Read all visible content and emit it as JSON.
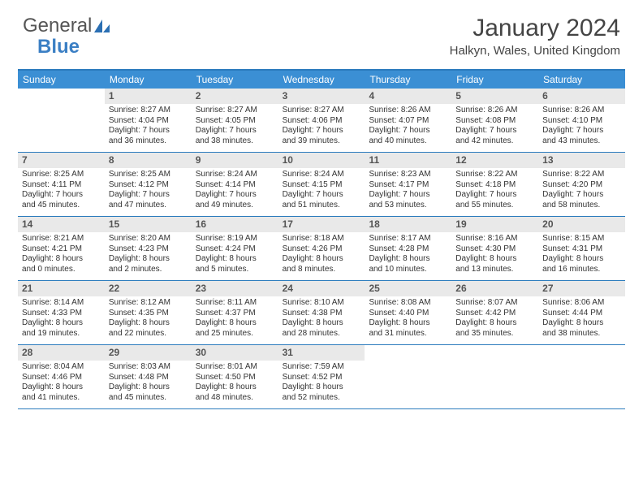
{
  "logo": {
    "text1": "General",
    "text2": "Blue"
  },
  "title": "January 2024",
  "location": "Halkyn, Wales, United Kingdom",
  "colors": {
    "header_bg": "#3b8fd4",
    "header_text": "#ffffff",
    "rule": "#2b7bbd",
    "daynum_bg": "#e9e9e9",
    "body_text": "#333333"
  },
  "day_names": [
    "Sunday",
    "Monday",
    "Tuesday",
    "Wednesday",
    "Thursday",
    "Friday",
    "Saturday"
  ],
  "weeks": [
    [
      null,
      {
        "n": "1",
        "sr": "Sunrise: 8:27 AM",
        "ss": "Sunset: 4:04 PM",
        "d1": "Daylight: 7 hours",
        "d2": "and 36 minutes."
      },
      {
        "n": "2",
        "sr": "Sunrise: 8:27 AM",
        "ss": "Sunset: 4:05 PM",
        "d1": "Daylight: 7 hours",
        "d2": "and 38 minutes."
      },
      {
        "n": "3",
        "sr": "Sunrise: 8:27 AM",
        "ss": "Sunset: 4:06 PM",
        "d1": "Daylight: 7 hours",
        "d2": "and 39 minutes."
      },
      {
        "n": "4",
        "sr": "Sunrise: 8:26 AM",
        "ss": "Sunset: 4:07 PM",
        "d1": "Daylight: 7 hours",
        "d2": "and 40 minutes."
      },
      {
        "n": "5",
        "sr": "Sunrise: 8:26 AM",
        "ss": "Sunset: 4:08 PM",
        "d1": "Daylight: 7 hours",
        "d2": "and 42 minutes."
      },
      {
        "n": "6",
        "sr": "Sunrise: 8:26 AM",
        "ss": "Sunset: 4:10 PM",
        "d1": "Daylight: 7 hours",
        "d2": "and 43 minutes."
      }
    ],
    [
      {
        "n": "7",
        "sr": "Sunrise: 8:25 AM",
        "ss": "Sunset: 4:11 PM",
        "d1": "Daylight: 7 hours",
        "d2": "and 45 minutes."
      },
      {
        "n": "8",
        "sr": "Sunrise: 8:25 AM",
        "ss": "Sunset: 4:12 PM",
        "d1": "Daylight: 7 hours",
        "d2": "and 47 minutes."
      },
      {
        "n": "9",
        "sr": "Sunrise: 8:24 AM",
        "ss": "Sunset: 4:14 PM",
        "d1": "Daylight: 7 hours",
        "d2": "and 49 minutes."
      },
      {
        "n": "10",
        "sr": "Sunrise: 8:24 AM",
        "ss": "Sunset: 4:15 PM",
        "d1": "Daylight: 7 hours",
        "d2": "and 51 minutes."
      },
      {
        "n": "11",
        "sr": "Sunrise: 8:23 AM",
        "ss": "Sunset: 4:17 PM",
        "d1": "Daylight: 7 hours",
        "d2": "and 53 minutes."
      },
      {
        "n": "12",
        "sr": "Sunrise: 8:22 AM",
        "ss": "Sunset: 4:18 PM",
        "d1": "Daylight: 7 hours",
        "d2": "and 55 minutes."
      },
      {
        "n": "13",
        "sr": "Sunrise: 8:22 AM",
        "ss": "Sunset: 4:20 PM",
        "d1": "Daylight: 7 hours",
        "d2": "and 58 minutes."
      }
    ],
    [
      {
        "n": "14",
        "sr": "Sunrise: 8:21 AM",
        "ss": "Sunset: 4:21 PM",
        "d1": "Daylight: 8 hours",
        "d2": "and 0 minutes."
      },
      {
        "n": "15",
        "sr": "Sunrise: 8:20 AM",
        "ss": "Sunset: 4:23 PM",
        "d1": "Daylight: 8 hours",
        "d2": "and 2 minutes."
      },
      {
        "n": "16",
        "sr": "Sunrise: 8:19 AM",
        "ss": "Sunset: 4:24 PM",
        "d1": "Daylight: 8 hours",
        "d2": "and 5 minutes."
      },
      {
        "n": "17",
        "sr": "Sunrise: 8:18 AM",
        "ss": "Sunset: 4:26 PM",
        "d1": "Daylight: 8 hours",
        "d2": "and 8 minutes."
      },
      {
        "n": "18",
        "sr": "Sunrise: 8:17 AM",
        "ss": "Sunset: 4:28 PM",
        "d1": "Daylight: 8 hours",
        "d2": "and 10 minutes."
      },
      {
        "n": "19",
        "sr": "Sunrise: 8:16 AM",
        "ss": "Sunset: 4:30 PM",
        "d1": "Daylight: 8 hours",
        "d2": "and 13 minutes."
      },
      {
        "n": "20",
        "sr": "Sunrise: 8:15 AM",
        "ss": "Sunset: 4:31 PM",
        "d1": "Daylight: 8 hours",
        "d2": "and 16 minutes."
      }
    ],
    [
      {
        "n": "21",
        "sr": "Sunrise: 8:14 AM",
        "ss": "Sunset: 4:33 PM",
        "d1": "Daylight: 8 hours",
        "d2": "and 19 minutes."
      },
      {
        "n": "22",
        "sr": "Sunrise: 8:12 AM",
        "ss": "Sunset: 4:35 PM",
        "d1": "Daylight: 8 hours",
        "d2": "and 22 minutes."
      },
      {
        "n": "23",
        "sr": "Sunrise: 8:11 AM",
        "ss": "Sunset: 4:37 PM",
        "d1": "Daylight: 8 hours",
        "d2": "and 25 minutes."
      },
      {
        "n": "24",
        "sr": "Sunrise: 8:10 AM",
        "ss": "Sunset: 4:38 PM",
        "d1": "Daylight: 8 hours",
        "d2": "and 28 minutes."
      },
      {
        "n": "25",
        "sr": "Sunrise: 8:08 AM",
        "ss": "Sunset: 4:40 PM",
        "d1": "Daylight: 8 hours",
        "d2": "and 31 minutes."
      },
      {
        "n": "26",
        "sr": "Sunrise: 8:07 AM",
        "ss": "Sunset: 4:42 PM",
        "d1": "Daylight: 8 hours",
        "d2": "and 35 minutes."
      },
      {
        "n": "27",
        "sr": "Sunrise: 8:06 AM",
        "ss": "Sunset: 4:44 PM",
        "d1": "Daylight: 8 hours",
        "d2": "and 38 minutes."
      }
    ],
    [
      {
        "n": "28",
        "sr": "Sunrise: 8:04 AM",
        "ss": "Sunset: 4:46 PM",
        "d1": "Daylight: 8 hours",
        "d2": "and 41 minutes."
      },
      {
        "n": "29",
        "sr": "Sunrise: 8:03 AM",
        "ss": "Sunset: 4:48 PM",
        "d1": "Daylight: 8 hours",
        "d2": "and 45 minutes."
      },
      {
        "n": "30",
        "sr": "Sunrise: 8:01 AM",
        "ss": "Sunset: 4:50 PM",
        "d1": "Daylight: 8 hours",
        "d2": "and 48 minutes."
      },
      {
        "n": "31",
        "sr": "Sunrise: 7:59 AM",
        "ss": "Sunset: 4:52 PM",
        "d1": "Daylight: 8 hours",
        "d2": "and 52 minutes."
      },
      null,
      null,
      null
    ]
  ]
}
